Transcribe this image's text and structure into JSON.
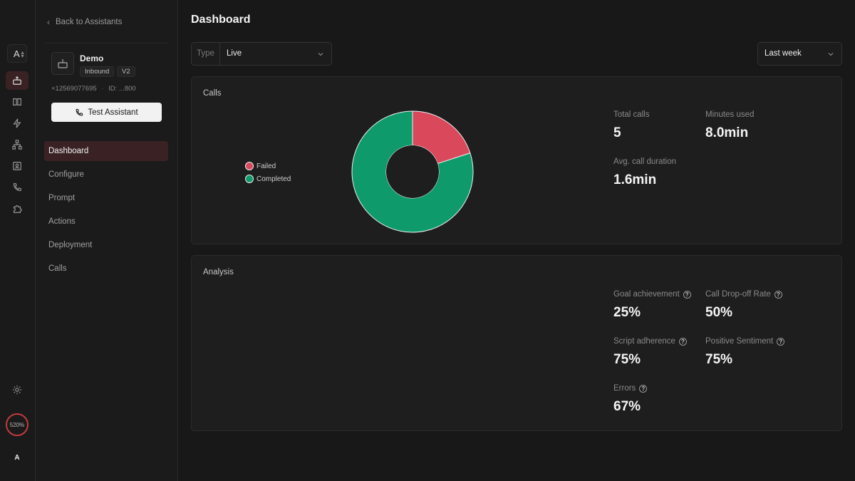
{
  "rail": {
    "workspace_initial": "A",
    "usage": "520%",
    "user_initial": "A",
    "icons": [
      "assistant-icon",
      "book-icon",
      "lightning-icon",
      "workflow-icon",
      "contacts-icon",
      "phone-icon",
      "puzzle-icon",
      "gear-icon"
    ]
  },
  "sidebar": {
    "back_label": "Back to Assistants",
    "assistant": {
      "name": "Demo",
      "tags": [
        "Inbound",
        "V2"
      ],
      "phone": "+12569077695",
      "id": "ID: ...800"
    },
    "test_button": "Test Assistant",
    "nav": [
      {
        "label": "Dashboard",
        "active": true
      },
      {
        "label": "Configure"
      },
      {
        "label": "Prompt"
      },
      {
        "label": "Actions"
      },
      {
        "label": "Deployment"
      },
      {
        "label": "Calls"
      }
    ]
  },
  "main": {
    "title": "Dashboard",
    "type_filter": {
      "label": "Type",
      "value": "Live"
    },
    "range_filter": {
      "value": "Last week"
    },
    "calls_panel": {
      "title": "Calls",
      "stats": [
        {
          "label": "Total calls",
          "value": "5"
        },
        {
          "label": "Minutes used",
          "value": "8.0min"
        },
        {
          "label": "Avg. call duration",
          "value": "1.6min"
        }
      ]
    },
    "analysis_panel": {
      "title": "Analysis",
      "stats": [
        {
          "label": "Goal achievement",
          "value": "25%"
        },
        {
          "label": "Call Drop-off Rate",
          "value": "50%"
        },
        {
          "label": "Script adherence",
          "value": "75%"
        },
        {
          "label": "Positive Sentiment",
          "value": "75%"
        },
        {
          "label": "Errors",
          "value": "67%"
        }
      ]
    }
  },
  "chart_data": {
    "type": "pie",
    "categories": [
      "Failed",
      "Completed"
    ],
    "values": [
      1,
      4
    ],
    "colors": [
      "#d9485b",
      "#0e9a6b"
    ],
    "title": "",
    "legend_position": "left"
  }
}
